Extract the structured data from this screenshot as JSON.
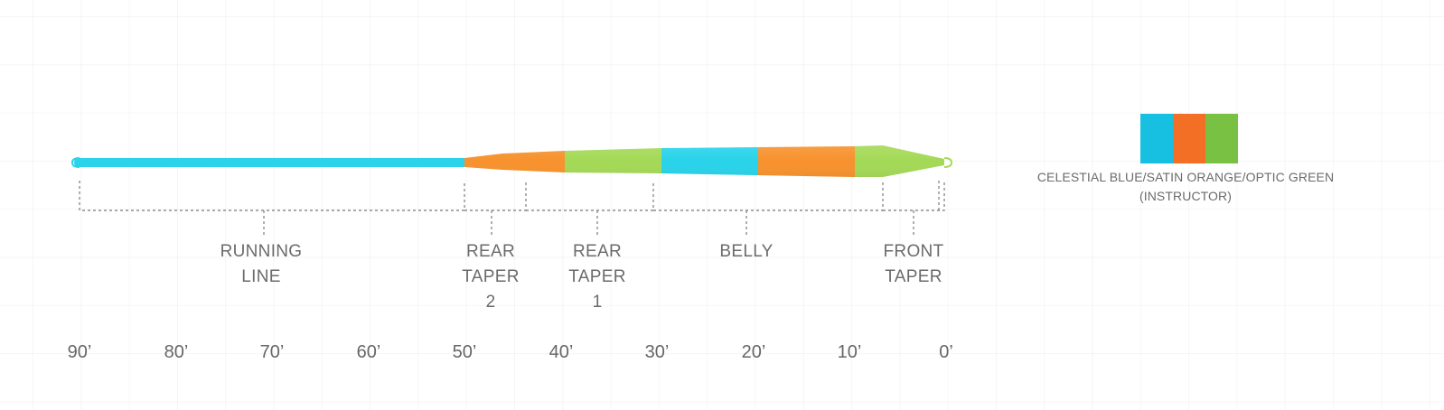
{
  "segments": [
    {
      "key": "running_line",
      "label": "RUNNING\nLINE",
      "start_ft": 90,
      "end_ft": 50,
      "color": "#29d3ea"
    },
    {
      "key": "rear_taper_2",
      "label": "REAR\nTAPER\n2",
      "start_ft": 50,
      "end_ft": 39.5,
      "color": "#f7922e"
    },
    {
      "key": "rear_taper_1",
      "label": "REAR\nTAPER\n1",
      "start_ft": 39.5,
      "end_ft": 29.5,
      "color": "#a4d957"
    },
    {
      "key": "belly",
      "label": "BELLY",
      "start_ft": 29.5,
      "end_ft": 19.5,
      "color": "#29d3ea"
    },
    {
      "key": "belly_orange",
      "label": "",
      "start_ft": 19.5,
      "end_ft": 9.5,
      "color": "#f7922e"
    },
    {
      "key": "front_taper",
      "label": "FRONT\nTAPER",
      "start_ft": 9.5,
      "end_ft": 0,
      "color": "#a4d957"
    }
  ],
  "axis": {
    "ticks": [
      "90’",
      "80’",
      "70’",
      "60’",
      "50’",
      "40’",
      "30’",
      "20’",
      "10’",
      "0’"
    ],
    "max_ft": 90
  },
  "color_swatch": {
    "colors": [
      "#17c0e1",
      "#f26f25",
      "#78c143"
    ],
    "caption_line1": "CELESTIAL BLUE/SATIN ORANGE/OPTIC GREEN",
    "caption_line2": "(INSTRUCTOR)"
  }
}
